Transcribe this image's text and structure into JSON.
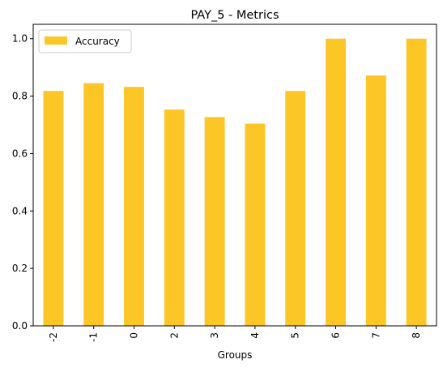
{
  "chart_data": {
    "type": "bar",
    "title": "PAY_5 - Metrics",
    "xlabel": "Groups",
    "ylabel": "",
    "categories": [
      "-2",
      "-1",
      "0",
      "2",
      "3",
      "4",
      "5",
      "6",
      "7",
      "8"
    ],
    "series": [
      {
        "name": "Accuracy",
        "color": "#fdc627",
        "values": [
          0.818,
          0.845,
          0.832,
          0.753,
          0.727,
          0.704,
          0.818,
          1.0,
          0.872,
          1.0
        ]
      }
    ],
    "ylim": [
      0,
      1.05
    ],
    "yticks": [
      "0.0",
      "0.2",
      "0.4",
      "0.6",
      "0.8",
      "1.0"
    ],
    "grid": false,
    "legend_position": "top-left"
  }
}
